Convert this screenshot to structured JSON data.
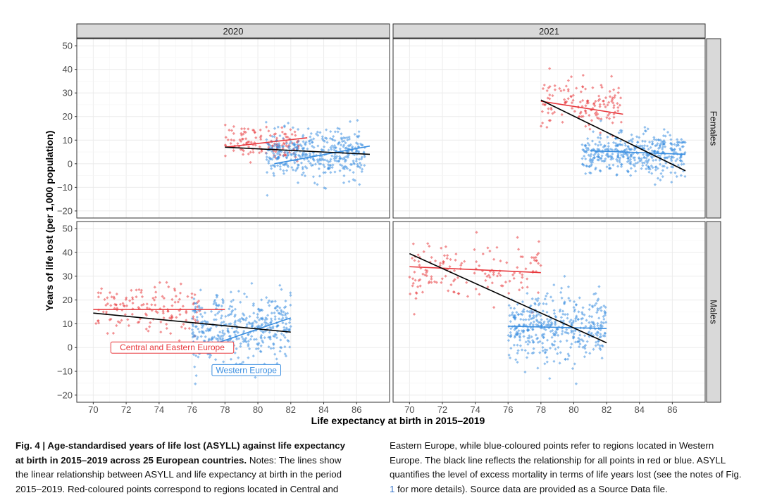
{
  "chart_data": {
    "type": "scatter",
    "layout": "faceted 2x2",
    "xlabel": "Life expectancy at birth in 2015–2019",
    "ylabel": "Years of life lost (per 1,000 population)",
    "xlim": [
      69,
      88
    ],
    "ylim": [
      -23,
      53
    ],
    "x_ticks": [
      70,
      72,
      74,
      76,
      78,
      80,
      82,
      84,
      86
    ],
    "y_ticks": [
      -20,
      -10,
      0,
      10,
      20,
      30,
      40,
      50
    ],
    "col_facets": [
      "2020",
      "2021"
    ],
    "row_facets": [
      "Females",
      "Males"
    ],
    "series": [
      {
        "name": "Central and Eastern Europe",
        "color": "#e8383d"
      },
      {
        "name": "Western Europe",
        "color": "#3a8ee0"
      },
      {
        "name": "All points",
        "color": "#000000"
      }
    ],
    "region_labels": [
      {
        "text": "Central and Eastern Europe",
        "color": "#e8383d",
        "panel": "Males 2020",
        "at": [
          74.8,
          0
        ]
      },
      {
        "text": "Western Europe",
        "color": "#3a8ee0",
        "panel": "Males 2020",
        "at": [
          79.3,
          -9.5
        ]
      }
    ],
    "panels": [
      {
        "col": "2020",
        "row": "Females",
        "clusters": [
          {
            "series": "Central and Eastern Europe",
            "x_range": [
              78,
              82.5
            ],
            "y_mean": 9,
            "y_sd": 3.5,
            "n": 130
          },
          {
            "series": "Western Europe",
            "x_range": [
              80.5,
              86.5
            ],
            "y_mean": 4,
            "y_sd": 5,
            "n": 420
          }
        ],
        "fit_lines": [
          {
            "series": "Central and Eastern Europe",
            "x": [
              78,
              83
            ],
            "y": [
              7,
              11
            ]
          },
          {
            "series": "Western Europe",
            "x": [
              81,
              86.8
            ],
            "y": [
              0,
              7.5
            ]
          },
          {
            "series": "All points",
            "x": [
              78,
              86.8
            ],
            "y": [
              7,
              4
            ]
          }
        ]
      },
      {
        "col": "2021",
        "row": "Females",
        "clusters": [
          {
            "series": "Central and Eastern Europe",
            "x_range": [
              78,
              83
            ],
            "y_mean": 25,
            "y_sd": 5,
            "n": 140
          },
          {
            "series": "Western Europe",
            "x_range": [
              80.5,
              86.8
            ],
            "y_mean": 4,
            "y_sd": 4.5,
            "n": 430
          }
        ],
        "fit_lines": [
          {
            "series": "Central and Eastern Europe",
            "x": [
              78,
              83
            ],
            "y": [
              26.5,
              21
            ]
          },
          {
            "series": "Western Europe",
            "x": [
              81,
              86.8
            ],
            "y": [
              5.5,
              4
            ]
          },
          {
            "series": "All points",
            "x": [
              78,
              86.8
            ],
            "y": [
              27,
              -3
            ]
          }
        ]
      },
      {
        "col": "2020",
        "row": "Males",
        "clusters": [
          {
            "series": "Central and Eastern Europe",
            "x_range": [
              70,
              76.5
            ],
            "y_mean": 16,
            "y_sd": 5,
            "n": 150
          },
          {
            "series": "Western Europe",
            "x_range": [
              76,
              82
            ],
            "y_mean": 8,
            "y_sd": 7,
            "n": 430
          }
        ],
        "fit_lines": [
          {
            "series": "Central and Eastern Europe",
            "x": [
              70,
              78
            ],
            "y": [
              16,
              16
            ]
          },
          {
            "series": "Western Europe",
            "x": [
              76.5,
              82
            ],
            "y": [
              -0.5,
              12.5
            ]
          },
          {
            "series": "All points",
            "x": [
              70,
              82
            ],
            "y": [
              14.5,
              6.5
            ]
          }
        ]
      },
      {
        "col": "2021",
        "row": "Males",
        "clusters": [
          {
            "series": "Central and Eastern Europe",
            "x_range": [
              70,
              78
            ],
            "y_mean": 31,
            "y_sd": 7,
            "n": 150
          },
          {
            "series": "Western Europe",
            "x_range": [
              76,
              82
            ],
            "y_mean": 8,
            "y_sd": 7,
            "n": 430
          }
        ],
        "fit_lines": [
          {
            "series": "Central and Eastern Europe",
            "x": [
              70,
              78
            ],
            "y": [
              34,
              31.5
            ]
          },
          {
            "series": "Western Europe",
            "x": [
              76,
              82
            ],
            "y": [
              9,
              8
            ]
          },
          {
            "series": "All points",
            "x": [
              70,
              82
            ],
            "y": [
              39.5,
              2
            ]
          }
        ]
      }
    ]
  },
  "caption": {
    "left": {
      "title": "Fig. 4 | Age-standardised years of life lost (ASYLL) against life expectancy at birth in 2015–2019 across 25 European countries.",
      "body": "Notes: The lines show the linear relationship between ASYLL and life expectancy at birth in the period 2015–2019. Red-coloured points correspond to regions located in Central and"
    },
    "right": {
      "body1": "Eastern Europe, while blue-coloured points refer to regions located in Western Europe. The black line reflects the relationship for all points in red or blue. ASYLL quantifies the level of excess mortality in terms of life years lost (see the notes of Fig. ",
      "fig_link": "1",
      "body2": " for more details). Source data are provided as a Source Data file."
    }
  }
}
